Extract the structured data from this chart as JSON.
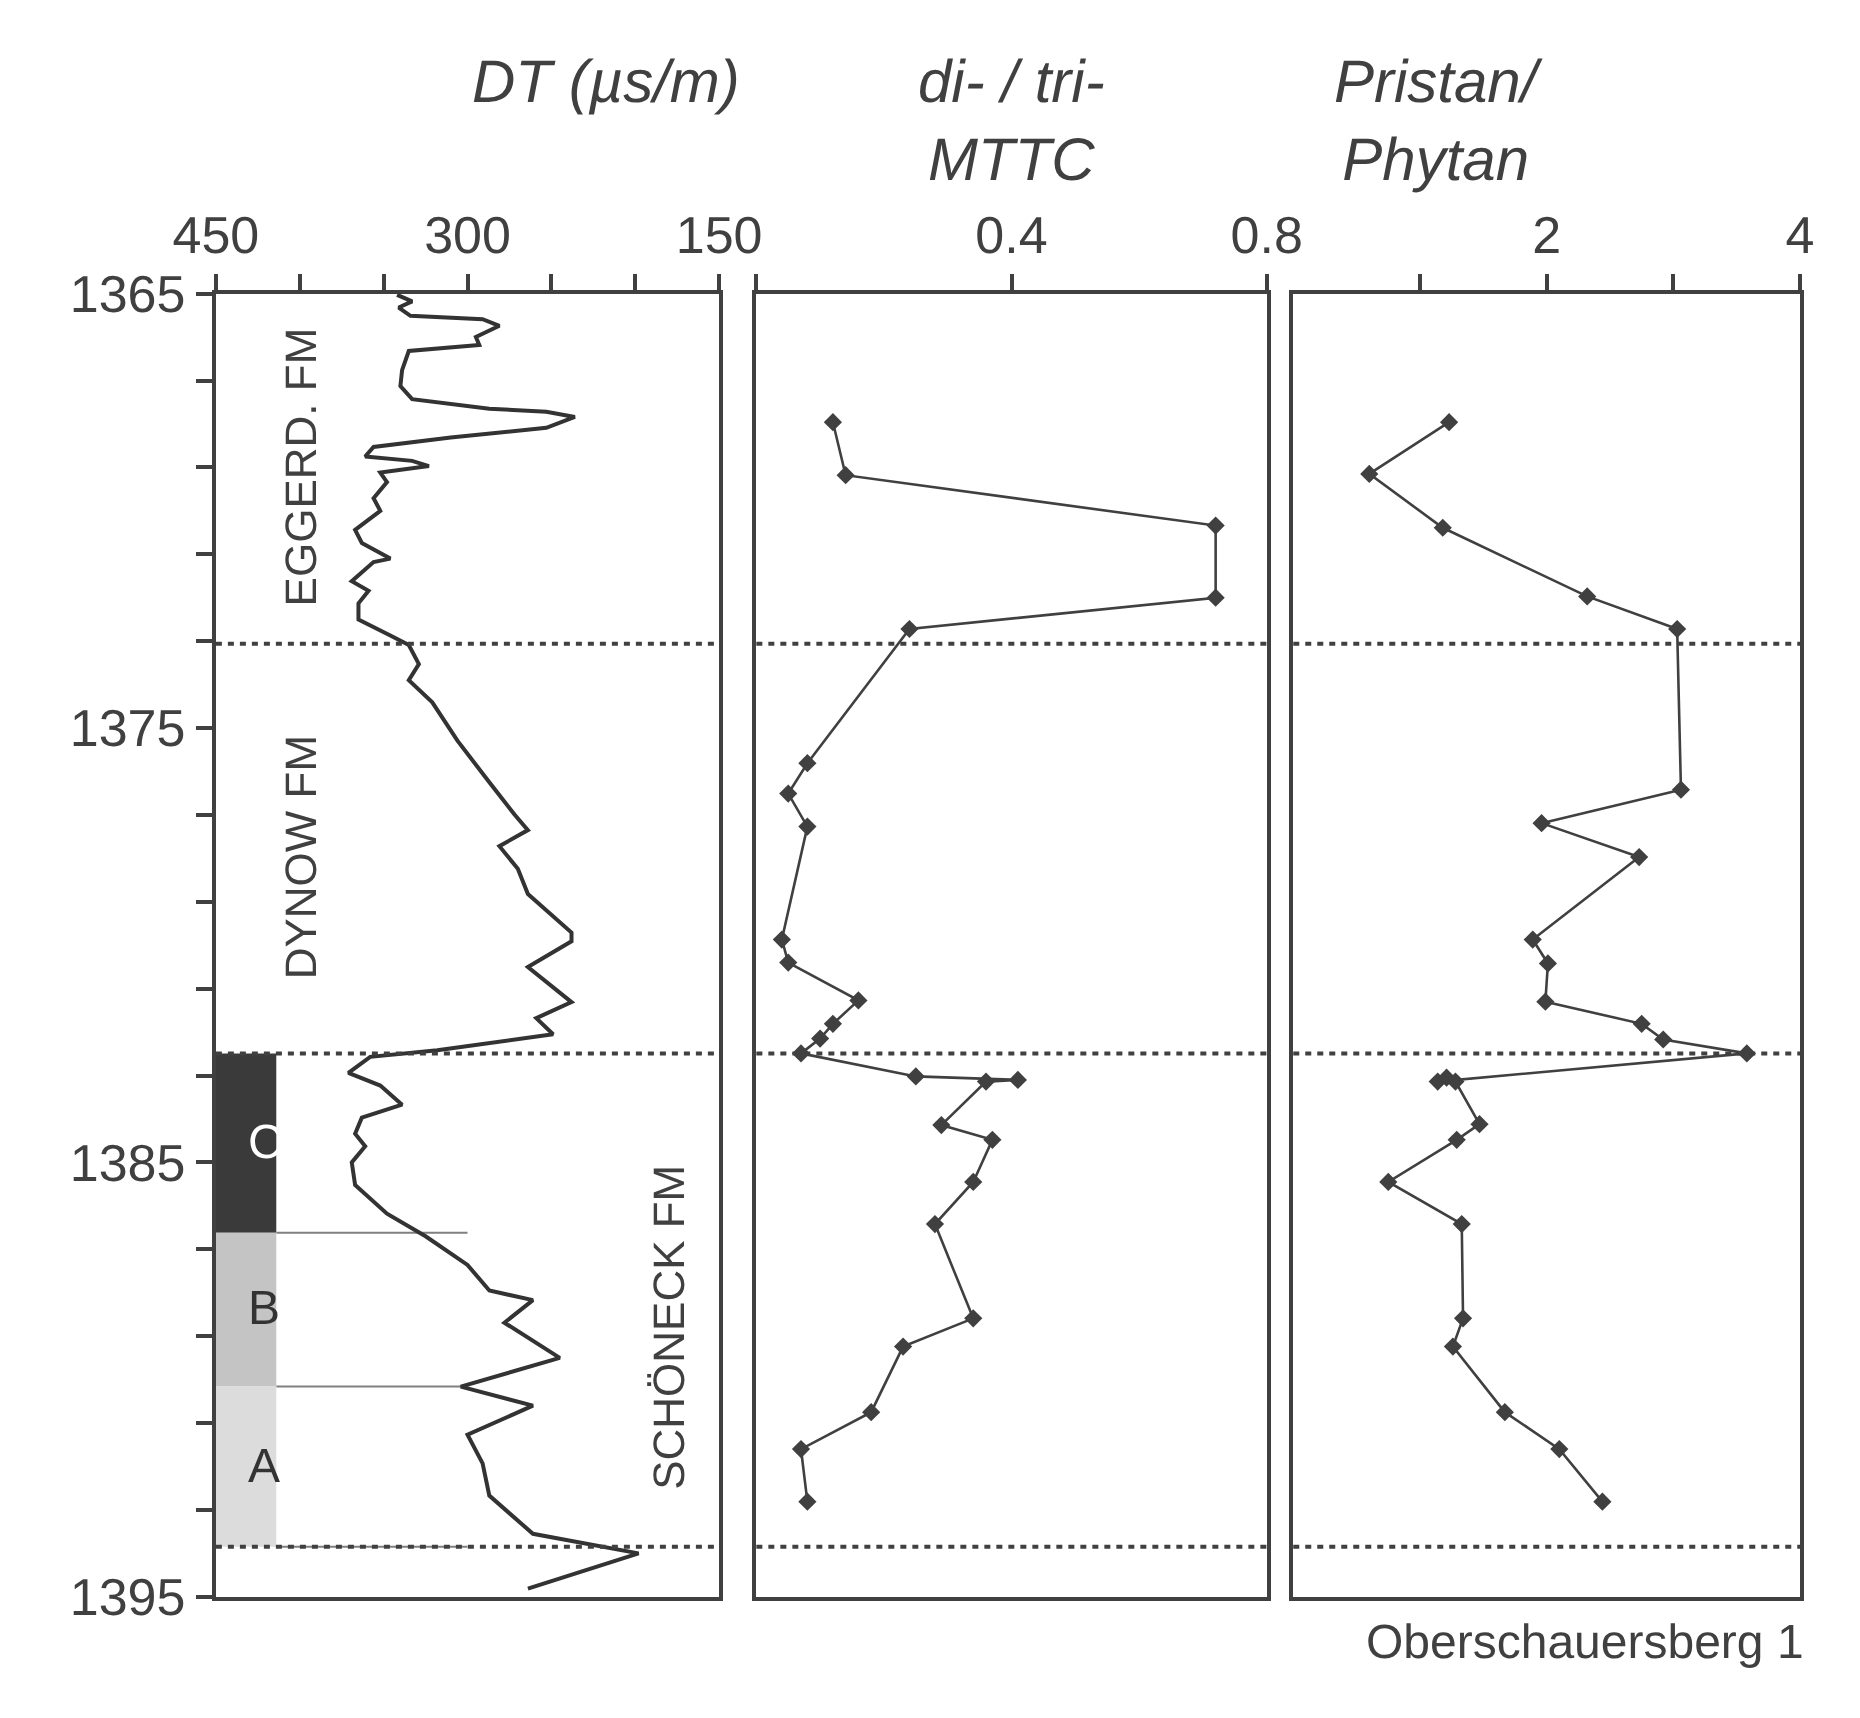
{
  "chart_data": [
    {
      "type": "line",
      "title": "DT (µs/m)",
      "xlim": [
        450,
        150
      ],
      "ylim": [
        1395,
        1365
      ],
      "xticks": [
        450,
        {
          "value": 400,
          "label": null
        },
        {
          "value": 350,
          "label": null
        },
        300,
        {
          "value": 250,
          "label": null
        },
        {
          "value": 200,
          "label": null
        },
        150
      ],
      "yticks": [
        1365,
        {
          "value": 1367,
          "label": null
        },
        {
          "value": 1369,
          "label": null
        },
        {
          "value": 1371,
          "label": null
        },
        {
          "value": 1373,
          "label": null
        },
        1375,
        {
          "value": 1377,
          "label": null
        },
        {
          "value": 1379,
          "label": null
        },
        {
          "value": 1381,
          "label": null
        },
        {
          "value": 1383,
          "label": null
        },
        1385,
        {
          "value": 1387,
          "label": null
        },
        {
          "value": 1389,
          "label": null
        },
        {
          "value": 1391,
          "label": null
        },
        {
          "value": 1393,
          "label": null
        },
        1395
      ],
      "grid": false,
      "marker": "none",
      "line_style": "solid",
      "series": [
        {
          "color": "#333333",
          "x": [
            342,
            333,
            341,
            334,
            291,
            281,
            295,
            293,
            335,
            339,
            340,
            333,
            287,
            253,
            236,
            253,
            310,
            356,
            361,
            333,
            323,
            352,
            348,
            356,
            352,
            367,
            363,
            346,
            356,
            369,
            359,
            365,
            365,
            346,
            335,
            329,
            335,
            321,
            306,
            287,
            272,
            264,
            281,
            270,
            264,
            238,
            238,
            264,
            238,
            259,
            249,
            318,
            358,
            371,
            352,
            339,
            363,
            367,
            361,
            369,
            367,
            348,
            325,
            300,
            287,
            261,
            278,
            245,
            304,
            261,
            300,
            291,
            287,
            261,
            198,
            264
          ],
          "values": [
            1365.03,
            1365.18,
            1365.32,
            1365.51,
            1365.59,
            1365.74,
            1366.0,
            1366.18,
            1366.32,
            1366.76,
            1367.13,
            1367.43,
            1367.65,
            1367.72,
            1367.84,
            1368.09,
            1368.31,
            1368.53,
            1368.75,
            1368.85,
            1368.97,
            1369.12,
            1369.34,
            1369.71,
            1370.0,
            1370.44,
            1370.74,
            1371.1,
            1371.18,
            1371.62,
            1371.84,
            1372.13,
            1372.5,
            1372.87,
            1373.09,
            1373.53,
            1373.9,
            1374.41,
            1375.29,
            1376.25,
            1376.99,
            1377.35,
            1377.72,
            1378.24,
            1378.82,
            1379.71,
            1379.91,
            1380.5,
            1381.31,
            1381.68,
            1382.05,
            1382.42,
            1382.57,
            1382.94,
            1383.23,
            1383.67,
            1383.97,
            1384.34,
            1384.63,
            1385.0,
            1385.52,
            1386.18,
            1386.7,
            1387.36,
            1387.95,
            1388.17,
            1388.69,
            1389.5,
            1390.16,
            1390.6,
            1391.27,
            1391.93,
            1392.67,
            1393.55,
            1394.0,
            1394.81
          ]
        }
      ],
      "ref_lines": [
        {
          "axis": "y",
          "value": 1373.06,
          "color": "#404040",
          "line_style": "dotted"
        },
        {
          "axis": "y",
          "value": 1382.49,
          "color": "#404040",
          "line_style": "dotted"
        },
        {
          "axis": "y",
          "value": 1393.85,
          "color": "#404040",
          "line_style": "dotted"
        }
      ],
      "bands": [
        {
          "axis": "y",
          "from": 1382.49,
          "to": 1386.62,
          "label": "C",
          "color": "#3a3a3a"
        },
        {
          "axis": "y",
          "from": 1386.62,
          "to": 1390.16,
          "label": "B",
          "color": "#c4c4c4"
        },
        {
          "axis": "y",
          "from": 1390.16,
          "to": 1393.85,
          "label": "A",
          "color": "#dcdcdc"
        }
      ],
      "annotations": [
        "EGGERD. FM",
        "DYNOW FM",
        "SCHÖNECK FM"
      ]
    },
    {
      "type": "line",
      "title": "di- / tri-\nMTTC",
      "xlim": [
        0,
        0.8
      ],
      "ylim": [
        1395,
        1365
      ],
      "xticks": [
        {
          "value": 0,
          "label": null
        },
        0.4,
        0.8
      ],
      "tick_labels": "x",
      "grid": false,
      "marker": "diamond",
      "line_style": "solid",
      "series": [
        {
          "color": "#404040",
          "x": [
            0.12,
            0.14,
            0.72,
            0.72,
            0.24,
            0.08,
            0.05,
            0.08,
            0.04,
            0.05,
            0.16,
            0.12,
            0.1,
            0.07,
            0.25,
            0.41,
            0.36,
            0.29,
            0.37,
            0.34,
            0.28,
            0.34,
            0.23,
            0.18,
            0.07,
            0.08
          ],
          "values": [
            1367.96,
            1369.18,
            1370.34,
            1372.0,
            1372.72,
            1375.81,
            1376.51,
            1377.27,
            1379.87,
            1380.4,
            1381.27,
            1381.81,
            1382.15,
            1382.49,
            1383.02,
            1383.1,
            1383.14,
            1384.14,
            1384.48,
            1385.45,
            1386.42,
            1388.59,
            1389.24,
            1390.75,
            1391.6,
            1392.81
          ]
        }
      ],
      "ref_lines": [
        {
          "axis": "y",
          "value": 1373.06,
          "color": "#404040",
          "line_style": "dotted"
        },
        {
          "axis": "y",
          "value": 1382.49,
          "color": "#404040",
          "line_style": "dotted"
        },
        {
          "axis": "y",
          "value": 1393.85,
          "color": "#404040",
          "line_style": "dotted"
        }
      ]
    },
    {
      "type": "line",
      "title": "Pristan/\nPhytan",
      "xlim": [
        0,
        4
      ],
      "ylim": [
        1395,
        1365
      ],
      "xticks": [
        {
          "value": 1,
          "label": null
        },
        2,
        {
          "value": 3,
          "label": null
        },
        4
      ],
      "tick_labels": "x",
      "grid": false,
      "marker": "diamond",
      "line_style": "solid",
      "series": [
        {
          "color": "#404040",
          "x": [
            1.23,
            0.6,
            1.18,
            2.32,
            3.03,
            3.06,
            1.96,
            2.73,
            1.89,
            2.01,
            1.99,
            2.75,
            2.92,
            3.58,
            1.14,
            1.21,
            1.28,
            1.47,
            1.29,
            0.75,
            1.33,
            1.34,
            1.26,
            1.67,
            2.1,
            2.44
          ],
          "values": [
            1367.96,
            1369.15,
            1370.39,
            1371.97,
            1372.72,
            1376.42,
            1377.19,
            1377.97,
            1379.87,
            1380.42,
            1381.3,
            1381.81,
            1382.17,
            1382.49,
            1383.14,
            1383.05,
            1383.14,
            1384.12,
            1384.48,
            1385.45,
            1386.42,
            1388.59,
            1389.24,
            1390.75,
            1391.6,
            1392.81
          ]
        }
      ],
      "ref_lines": [
        {
          "axis": "y",
          "value": 1373.06,
          "color": "#404040",
          "line_style": "dotted"
        },
        {
          "axis": "y",
          "value": 1382.49,
          "color": "#404040",
          "line_style": "dotted"
        },
        {
          "axis": "y",
          "value": 1393.85,
          "color": "#404040",
          "line_style": "dotted"
        }
      ],
      "annotations": [
        "Oberschauersberg 1"
      ]
    }
  ]
}
